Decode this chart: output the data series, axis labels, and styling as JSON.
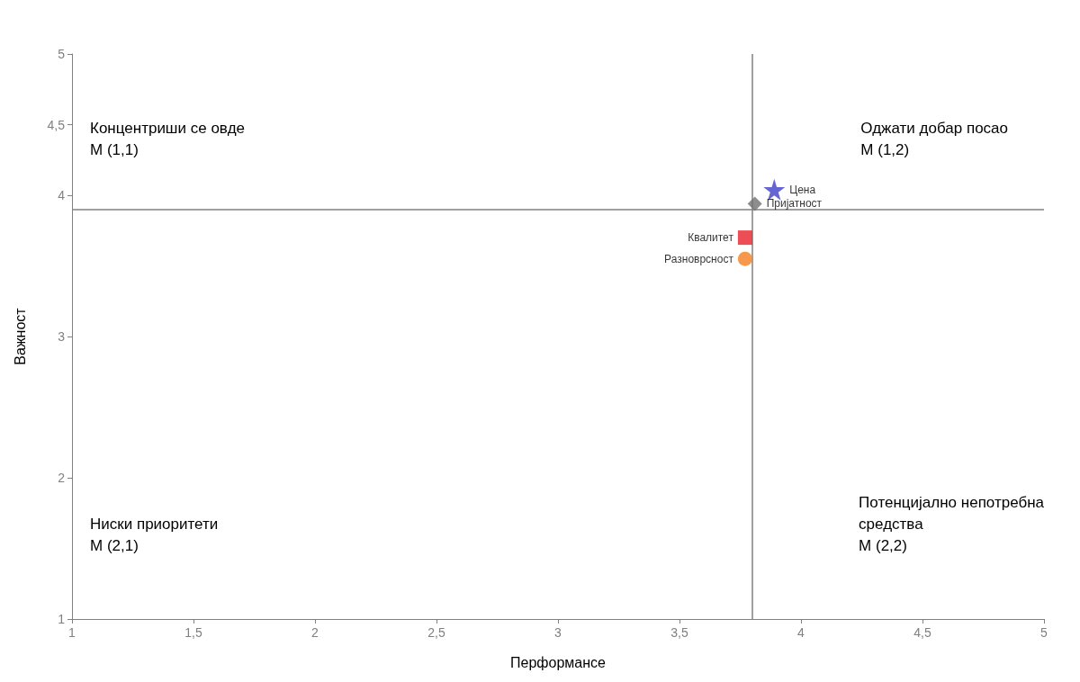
{
  "chart_data": {
    "type": "scatter",
    "xlabel": "Перформансе",
    "ylabel": "Важност",
    "xlim": [
      1,
      5
    ],
    "xticks": [
      1,
      {
        "value": 1.5,
        "label": "1,5"
      },
      2,
      {
        "value": 2.5,
        "label": "2,5"
      },
      3,
      {
        "value": 3.5,
        "label": "3,5"
      },
      4,
      {
        "value": 4.5,
        "label": "4,5"
      },
      5
    ],
    "ylim": [
      1,
      5
    ],
    "yticks": [
      1,
      2,
      3,
      4,
      {
        "value": 4.5,
        "label": "4,5"
      },
      5
    ],
    "grid": false,
    "legend": false,
    "series": [
      {
        "name": "Цена",
        "color": "#4040c8",
        "marker": "star",
        "x": [
          3.89
        ],
        "values": [
          4.04
        ]
      },
      {
        "name": "Пријатност",
        "color": "#707070",
        "marker": "diamond",
        "x": [
          3.81
        ],
        "values": [
          3.94
        ]
      },
      {
        "name": "Квалитет",
        "color": "#e8202a",
        "marker": "square",
        "x": [
          3.77
        ],
        "values": [
          3.7
        ]
      },
      {
        "name": "Разноврсност",
        "color": "#f57f20",
        "marker": "circle",
        "x": [
          3.77
        ],
        "values": [
          3.55
        ]
      }
    ],
    "ref_lines": [
      {
        "axis": "x",
        "value": 3.8,
        "color": "#808080"
      },
      {
        "axis": "y",
        "value": 3.9,
        "color": "#808080"
      }
    ],
    "annotations": [
      "Концентриши се овде\nM (1,1)",
      "Оджати добар посао\nM (1,2)",
      "Ниски приоритети\nM (2,1)",
      "Потенцијално непотребна\nсредства\nM (2,2)"
    ]
  }
}
